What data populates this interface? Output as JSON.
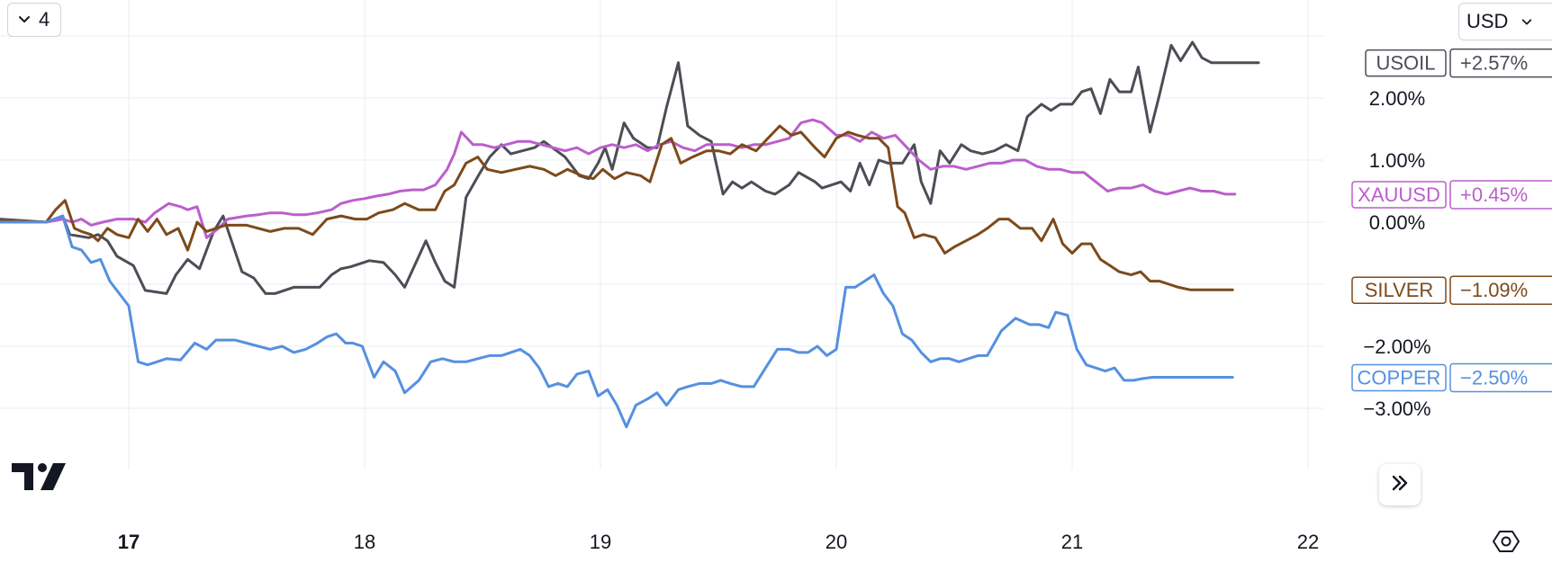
{
  "toolbar": {
    "series_count": "4",
    "currency": "USD"
  },
  "colors": {
    "grid": "#ebedf1",
    "text": "#131722",
    "usoil": "#4c4e56",
    "xauusd": "#bb5fcc",
    "silver": "#7d4a1b",
    "copper": "#5590e0"
  },
  "icons": {
    "count_toggle": "chevron-down-icon",
    "currency_toggle": "chevron-down-icon",
    "scroll": "double-chevron-right-icon",
    "settings": "hexagon-settings-icon",
    "logo": "tradingview-logo"
  },
  "chart_data": {
    "type": "line",
    "y_unit": "%",
    "ylim": [
      -3.7,
      3.5
    ],
    "xlim": [
      16.45,
      22.0
    ],
    "grid": true,
    "y_ticks": [
      {
        "value": 2,
        "label": "2.00%"
      },
      {
        "value": 1,
        "label": "1.00%"
      },
      {
        "value": 0,
        "label": "0.00%"
      },
      {
        "value": -2,
        "label": "−2.00%"
      },
      {
        "value": -3,
        "label": "−3.00%"
      }
    ],
    "x_ticks": [
      {
        "value": 17,
        "label": "17",
        "bold": true
      },
      {
        "value": 18,
        "label": "18",
        "bold": false
      },
      {
        "value": 19,
        "label": "19",
        "bold": false
      },
      {
        "value": 20,
        "label": "20",
        "bold": false
      },
      {
        "value": 21,
        "label": "21",
        "bold": false
      },
      {
        "value": 22,
        "label": "22",
        "bold": false
      }
    ],
    "series": [
      {
        "name": "USOIL",
        "color_key": "usoil",
        "last_label": "+2.57%",
        "last_value": 2.57,
        "x": [
          16.45,
          16.65,
          16.72,
          16.75,
          16.83,
          16.87,
          16.91,
          16.95,
          17.02,
          17.07,
          17.16,
          17.2,
          17.25,
          17.3,
          17.36,
          17.4,
          17.48,
          17.53,
          17.58,
          17.62,
          17.7,
          17.76,
          17.81,
          17.86,
          17.9,
          17.94,
          18.02,
          18.08,
          18.13,
          18.17,
          18.26,
          18.3,
          18.34,
          18.38,
          18.43,
          18.46,
          18.49,
          18.53,
          18.58,
          18.62,
          18.72,
          18.76,
          18.85,
          18.91,
          18.95,
          18.99,
          19.02,
          19.05,
          19.1,
          19.14,
          19.2,
          19.24,
          19.28,
          19.33,
          19.37,
          19.42,
          19.47,
          19.52,
          19.56,
          19.6,
          19.64,
          19.7,
          19.74,
          19.8,
          19.84,
          19.91,
          19.94,
          20.02,
          20.06,
          20.1,
          20.14,
          20.18,
          20.22,
          20.28,
          20.33,
          20.36,
          20.4,
          20.44,
          20.48,
          20.53,
          20.57,
          20.62,
          20.67,
          20.72,
          20.77,
          20.81,
          20.87,
          20.91,
          20.95,
          21.0,
          21.04,
          21.08,
          21.12,
          21.16,
          21.2,
          21.25,
          21.28,
          21.33,
          21.37,
          21.42,
          21.46,
          21.51,
          21.55,
          21.59,
          21.63,
          21.68,
          21.74,
          21.79
        ],
        "y": [
          0.05,
          0.0,
          0.1,
          -0.2,
          -0.25,
          -0.2,
          -0.3,
          -0.55,
          -0.7,
          -1.1,
          -1.15,
          -0.85,
          -0.6,
          -0.75,
          -0.15,
          0.1,
          -0.8,
          -0.9,
          -1.15,
          -1.15,
          -1.05,
          -1.05,
          -1.05,
          -0.85,
          -0.75,
          -0.72,
          -0.62,
          -0.65,
          -0.85,
          -1.05,
          -0.3,
          -0.65,
          -0.95,
          -1.05,
          0.4,
          0.6,
          0.8,
          1.05,
          1.25,
          1.1,
          1.2,
          1.3,
          1.05,
          0.75,
          0.7,
          0.95,
          1.2,
          0.85,
          1.6,
          1.35,
          1.2,
          1.2,
          1.85,
          2.57,
          1.55,
          1.4,
          1.3,
          0.45,
          0.65,
          0.55,
          0.65,
          0.5,
          0.45,
          0.6,
          0.8,
          0.65,
          0.55,
          0.65,
          0.5,
          0.95,
          0.6,
          1.0,
          0.95,
          0.95,
          1.25,
          0.65,
          0.3,
          1.15,
          0.95,
          1.25,
          1.15,
          1.1,
          1.15,
          1.25,
          1.15,
          1.7,
          1.9,
          1.8,
          1.9,
          1.9,
          2.1,
          2.15,
          1.75,
          2.3,
          2.1,
          2.1,
          2.5,
          1.45,
          2.05,
          2.85,
          2.6,
          2.9,
          2.65,
          2.57,
          2.57,
          2.57,
          2.57,
          2.57
        ]
      },
      {
        "name": "XAUUSD",
        "color_key": "xauusd",
        "last_label": "+0.45%",
        "last_value": 0.45,
        "x": [
          16.45,
          16.65,
          16.72,
          16.76,
          16.8,
          16.84,
          16.89,
          16.95,
          17.02,
          17.07,
          17.11,
          17.17,
          17.22,
          17.25,
          17.29,
          17.33,
          17.38,
          17.42,
          17.5,
          17.55,
          17.6,
          17.65,
          17.7,
          17.75,
          17.8,
          17.86,
          17.9,
          17.95,
          18.0,
          18.05,
          18.1,
          18.15,
          18.2,
          18.25,
          18.3,
          18.35,
          18.38,
          18.41,
          18.46,
          18.5,
          18.55,
          18.6,
          18.65,
          18.7,
          18.75,
          18.8,
          18.85,
          18.9,
          18.95,
          19.0,
          19.05,
          19.1,
          19.15,
          19.2,
          19.25,
          19.3,
          19.35,
          19.4,
          19.45,
          19.5,
          19.55,
          19.6,
          19.65,
          19.7,
          19.75,
          19.8,
          19.85,
          19.9,
          19.94,
          20.0,
          20.05,
          20.1,
          20.15,
          20.2,
          20.25,
          20.3,
          20.35,
          20.4,
          20.45,
          20.5,
          20.55,
          20.6,
          20.65,
          20.7,
          20.75,
          20.8,
          20.85,
          20.9,
          20.95,
          21.0,
          21.05,
          21.1,
          21.15,
          21.2,
          21.25,
          21.3,
          21.35,
          21.4,
          21.45,
          21.5,
          21.55,
          21.6,
          21.65,
          21.69
        ],
        "y": [
          0.03,
          0.0,
          0.05,
          0.0,
          0.05,
          -0.05,
          0.0,
          0.05,
          0.05,
          0.0,
          0.15,
          0.3,
          0.25,
          0.2,
          0.25,
          -0.25,
          -0.1,
          0.05,
          0.1,
          0.12,
          0.15,
          0.15,
          0.12,
          0.12,
          0.15,
          0.2,
          0.3,
          0.35,
          0.38,
          0.42,
          0.45,
          0.5,
          0.52,
          0.52,
          0.6,
          0.85,
          1.1,
          1.45,
          1.25,
          1.25,
          1.2,
          1.25,
          1.3,
          1.3,
          1.25,
          1.2,
          1.15,
          1.2,
          1.1,
          1.2,
          1.25,
          1.2,
          1.25,
          1.15,
          1.25,
          1.3,
          1.2,
          1.15,
          1.25,
          1.25,
          1.25,
          1.2,
          1.25,
          1.25,
          1.3,
          1.35,
          1.6,
          1.65,
          1.6,
          1.4,
          1.4,
          1.3,
          1.45,
          1.35,
          1.4,
          1.2,
          1.0,
          0.85,
          0.9,
          0.9,
          0.85,
          0.9,
          0.95,
          0.95,
          1.0,
          1.0,
          0.9,
          0.85,
          0.85,
          0.8,
          0.8,
          0.65,
          0.5,
          0.55,
          0.55,
          0.6,
          0.5,
          0.45,
          0.5,
          0.55,
          0.5,
          0.5,
          0.45,
          0.45
        ]
      },
      {
        "name": "SILVER",
        "color_key": "silver",
        "last_label": "−1.09%",
        "last_value": -1.09,
        "x": [
          16.45,
          16.65,
          16.69,
          16.73,
          16.77,
          16.8,
          16.84,
          16.87,
          16.91,
          16.95,
          17.0,
          17.04,
          17.08,
          17.12,
          17.16,
          17.21,
          17.25,
          17.29,
          17.33,
          17.37,
          17.41,
          17.45,
          17.5,
          17.55,
          17.6,
          17.66,
          17.72,
          17.78,
          17.84,
          17.9,
          17.96,
          18.01,
          18.06,
          18.12,
          18.17,
          18.23,
          18.3,
          18.34,
          18.38,
          18.43,
          18.48,
          18.52,
          18.58,
          18.64,
          18.7,
          18.76,
          18.81,
          18.86,
          18.92,
          18.97,
          19.01,
          19.06,
          19.11,
          19.17,
          19.21,
          19.26,
          19.3,
          19.34,
          19.39,
          19.45,
          19.5,
          19.55,
          19.6,
          19.66,
          19.71,
          19.76,
          19.81,
          19.85,
          19.91,
          19.95,
          20.0,
          20.05,
          20.09,
          20.14,
          20.18,
          20.22,
          20.26,
          20.29,
          20.33,
          20.37,
          20.42,
          20.46,
          20.5,
          20.55,
          20.6,
          20.64,
          20.69,
          20.73,
          20.78,
          20.83,
          20.87,
          20.92,
          20.96,
          21.0,
          21.04,
          21.08,
          21.12,
          21.16,
          21.2,
          21.25,
          21.29,
          21.33,
          21.37,
          21.41,
          21.45,
          21.5,
          21.56,
          21.6,
          21.64,
          21.68
        ],
        "y": [
          0.03,
          0.0,
          0.2,
          0.35,
          -0.1,
          -0.15,
          -0.2,
          -0.3,
          -0.1,
          -0.2,
          -0.25,
          0.05,
          -0.15,
          0.05,
          -0.2,
          -0.1,
          -0.45,
          0.0,
          -0.15,
          -0.1,
          -0.05,
          -0.05,
          -0.05,
          -0.1,
          -0.15,
          -0.1,
          -0.1,
          -0.2,
          0.05,
          0.1,
          0.05,
          0.05,
          0.15,
          0.2,
          0.3,
          0.2,
          0.2,
          0.5,
          0.6,
          0.95,
          1.05,
          0.85,
          0.8,
          0.85,
          0.9,
          0.85,
          0.75,
          0.85,
          0.75,
          0.7,
          0.85,
          0.7,
          0.8,
          0.75,
          0.65,
          1.25,
          1.35,
          0.95,
          1.05,
          1.15,
          1.15,
          1.1,
          1.25,
          1.15,
          1.35,
          1.55,
          1.4,
          1.45,
          1.2,
          1.05,
          1.35,
          1.45,
          1.4,
          1.35,
          1.35,
          1.2,
          0.25,
          0.15,
          -0.25,
          -0.2,
          -0.25,
          -0.5,
          -0.4,
          -0.3,
          -0.2,
          -0.1,
          0.05,
          0.05,
          -0.1,
          -0.1,
          -0.3,
          0.05,
          -0.35,
          -0.5,
          -0.35,
          -0.35,
          -0.6,
          -0.7,
          -0.8,
          -0.85,
          -0.8,
          -0.95,
          -0.95,
          -1.0,
          -1.05,
          -1.09,
          -1.09,
          -1.09,
          -1.09,
          -1.09
        ]
      },
      {
        "name": "COPPER",
        "color_key": "copper",
        "last_label": "−2.50%",
        "last_value": -2.5,
        "x": [
          16.45,
          16.65,
          16.72,
          16.76,
          16.8,
          16.84,
          16.88,
          16.92,
          16.96,
          17.0,
          17.04,
          17.08,
          17.12,
          17.16,
          17.22,
          17.28,
          17.33,
          17.37,
          17.41,
          17.45,
          17.5,
          17.55,
          17.6,
          17.65,
          17.7,
          17.75,
          17.8,
          17.84,
          17.88,
          17.92,
          17.95,
          17.99,
          18.04,
          18.08,
          18.13,
          18.17,
          18.23,
          18.28,
          18.33,
          18.38,
          18.43,
          18.48,
          18.53,
          18.58,
          18.62,
          18.66,
          18.7,
          18.74,
          18.78,
          18.82,
          18.86,
          18.9,
          18.95,
          18.99,
          19.03,
          19.07,
          19.11,
          19.15,
          19.2,
          19.24,
          19.28,
          19.33,
          19.37,
          19.42,
          19.47,
          19.51,
          19.55,
          19.6,
          19.65,
          19.7,
          19.75,
          19.8,
          19.84,
          19.88,
          19.92,
          19.96,
          20.0,
          20.04,
          20.08,
          20.12,
          20.16,
          20.2,
          20.24,
          20.28,
          20.32,
          20.36,
          20.4,
          20.44,
          20.48,
          20.52,
          20.56,
          20.6,
          20.64,
          20.7,
          20.76,
          20.82,
          20.86,
          20.9,
          20.93,
          20.98,
          21.02,
          21.06,
          21.1,
          21.14,
          21.18,
          21.22,
          21.26,
          21.3,
          21.34,
          21.38,
          21.42,
          21.46,
          21.52,
          21.56,
          21.62,
          21.68
        ],
        "y": [
          0.0,
          0.0,
          0.1,
          -0.4,
          -0.45,
          -0.65,
          -0.6,
          -0.95,
          -1.15,
          -1.35,
          -2.25,
          -2.3,
          -2.25,
          -2.2,
          -2.22,
          -1.95,
          -2.05,
          -1.9,
          -1.9,
          -1.9,
          -1.95,
          -2.0,
          -2.05,
          -2.0,
          -2.1,
          -2.05,
          -1.95,
          -1.85,
          -1.8,
          -1.95,
          -1.95,
          -2.0,
          -2.5,
          -2.25,
          -2.4,
          -2.75,
          -2.55,
          -2.25,
          -2.2,
          -2.25,
          -2.25,
          -2.2,
          -2.15,
          -2.15,
          -2.1,
          -2.05,
          -2.15,
          -2.35,
          -2.65,
          -2.6,
          -2.65,
          -2.45,
          -2.4,
          -2.8,
          -2.7,
          -2.95,
          -3.3,
          -2.95,
          -2.85,
          -2.75,
          -2.95,
          -2.7,
          -2.65,
          -2.6,
          -2.6,
          -2.55,
          -2.6,
          -2.65,
          -2.65,
          -2.35,
          -2.05,
          -2.05,
          -2.1,
          -2.1,
          -2.0,
          -2.15,
          -2.05,
          -1.05,
          -1.05,
          -0.95,
          -0.85,
          -1.15,
          -1.35,
          -1.8,
          -1.9,
          -2.1,
          -2.25,
          -2.2,
          -2.2,
          -2.25,
          -2.2,
          -2.15,
          -2.15,
          -1.75,
          -1.55,
          -1.65,
          -1.65,
          -1.7,
          -1.45,
          -1.5,
          -2.05,
          -2.3,
          -2.35,
          -2.4,
          -2.35,
          -2.55,
          -2.55,
          -2.52,
          -2.5,
          -2.5,
          -2.5,
          -2.5,
          -2.5,
          -2.5,
          -2.5,
          -2.5
        ]
      }
    ]
  }
}
